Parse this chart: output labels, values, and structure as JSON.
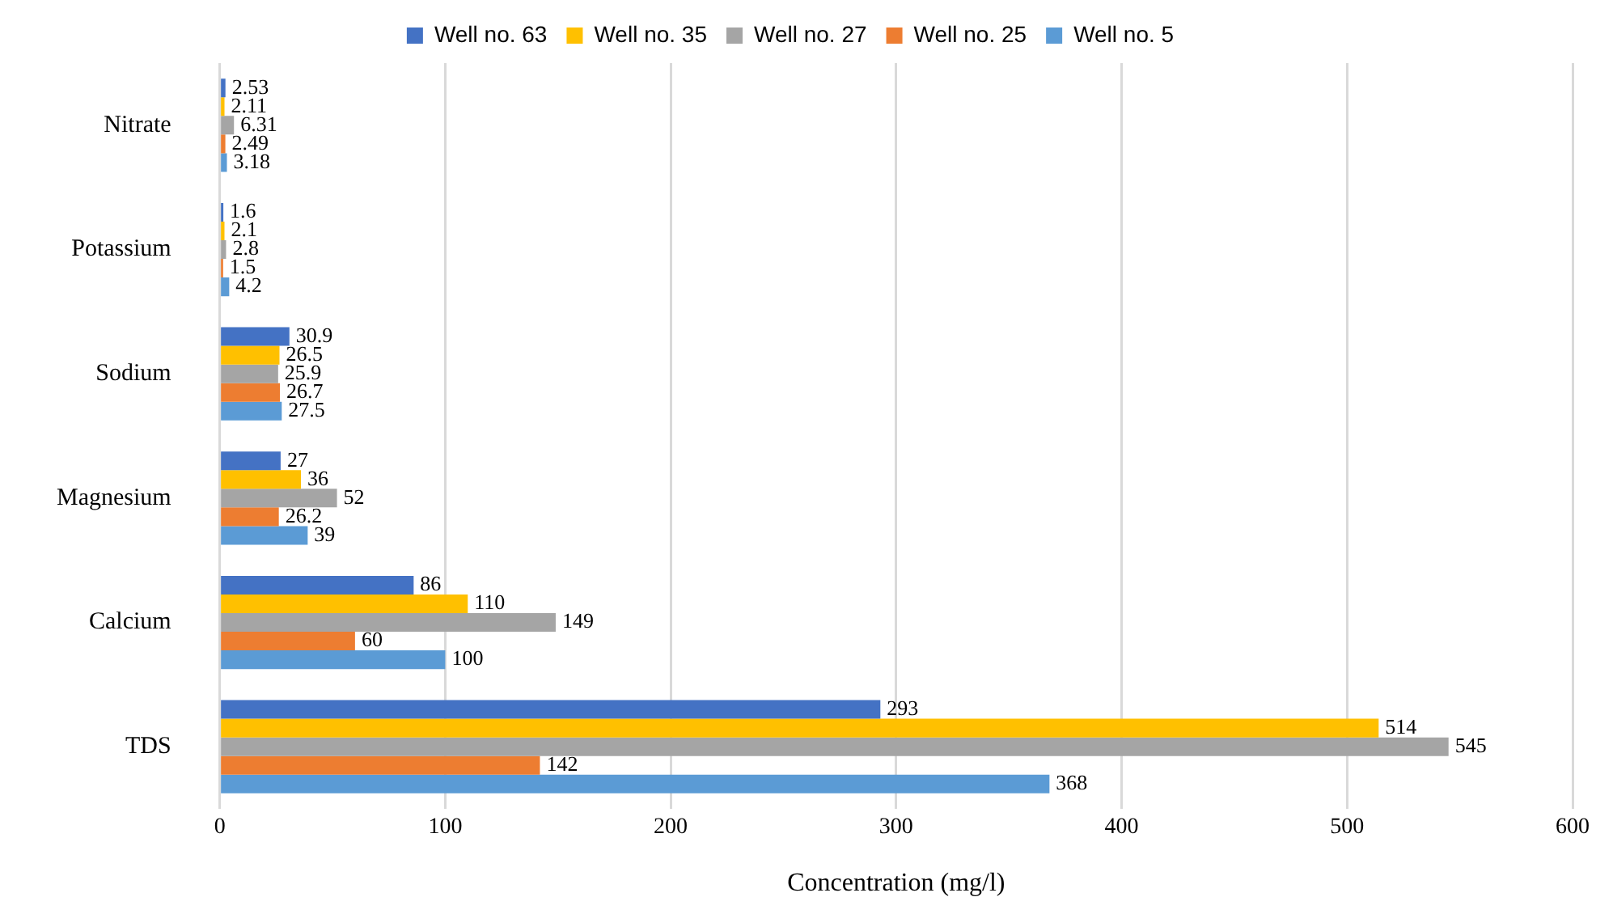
{
  "chart_data": {
    "type": "bar",
    "orientation": "horizontal",
    "xlabel": "Concentration (mg/l)",
    "categories": [
      "Nitrate",
      "Potassium",
      "Sodium",
      "Magnesium",
      "Calcium",
      "TDS"
    ],
    "series": [
      {
        "name": "Well no. 63",
        "color": "#4472c4",
        "values": [
          2.53,
          1.6,
          30.9,
          27,
          86,
          293
        ]
      },
      {
        "name": "Well no. 35",
        "color": "#ffc000",
        "values": [
          2.11,
          2.1,
          26.5,
          36,
          110,
          514
        ]
      },
      {
        "name": "Well no. 27",
        "color": "#a5a5a5",
        "values": [
          6.31,
          2.8,
          25.9,
          52,
          149,
          545
        ]
      },
      {
        "name": "Well no. 25",
        "color": "#ed7d31",
        "values": [
          2.49,
          1.5,
          26.7,
          26.2,
          60,
          142
        ]
      },
      {
        "name": "Well no. 5",
        "color": "#5b9bd5",
        "values": [
          3.18,
          4.2,
          27.5,
          39,
          100,
          368
        ]
      }
    ],
    "xlim": [
      0,
      600
    ],
    "xticks": [
      0,
      100,
      200,
      300,
      400,
      500,
      600
    ],
    "grid": "x",
    "legend": "top",
    "data_labels": true
  }
}
